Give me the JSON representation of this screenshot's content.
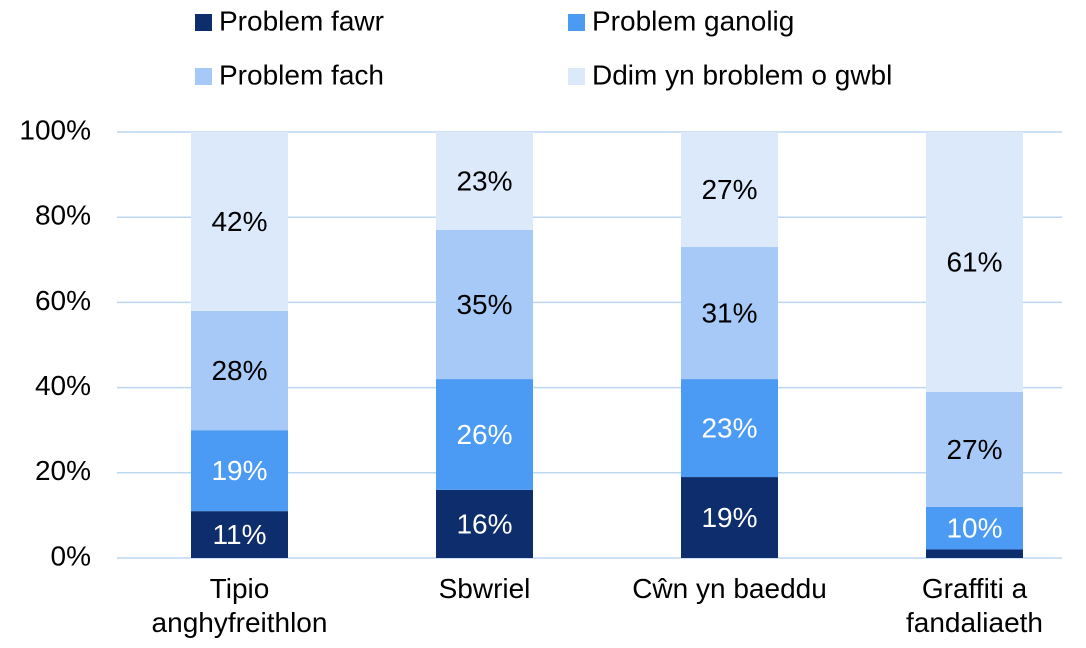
{
  "chart_data": {
    "type": "stacked_bar",
    "categories": [
      "Tipio anghyfreithlon",
      "Sbwriel",
      "Cŵn yn baeddu",
      "Graffiti a fandaliaeth"
    ],
    "series": [
      {
        "name": "Problem fawr",
        "color": "#0e2d6d",
        "values": [
          11,
          16,
          19,
          2
        ],
        "value_labels": [
          "11%",
          "16%",
          "19%",
          null
        ]
      },
      {
        "name": "Problem ganolig",
        "color": "#4b9bf5",
        "values": [
          19,
          26,
          23,
          10
        ],
        "value_labels": [
          "19%",
          "26%",
          "23%",
          "10%"
        ]
      },
      {
        "name": "Problem fach",
        "color": "#a6c9f7",
        "values": [
          28,
          35,
          31,
          27
        ],
        "value_labels": [
          "28%",
          "35%",
          "31%",
          "27%"
        ]
      },
      {
        "name": "Ddim yn broblem o gwbl",
        "color": "#dce9fb",
        "values": [
          42,
          23,
          27,
          61
        ],
        "value_labels": [
          "42%",
          "23%",
          "27%",
          "61%"
        ]
      }
    ],
    "ylim": [
      0,
      100
    ],
    "yticks": [
      {
        "value": 0,
        "label": "0%"
      },
      {
        "value": 20,
        "label": "20%"
      },
      {
        "value": 40,
        "label": "40%"
      },
      {
        "value": 60,
        "label": "60%"
      },
      {
        "value": 80,
        "label": "80%"
      },
      {
        "value": 100,
        "label": "100%"
      }
    ],
    "grid": true,
    "legend": "top"
  }
}
